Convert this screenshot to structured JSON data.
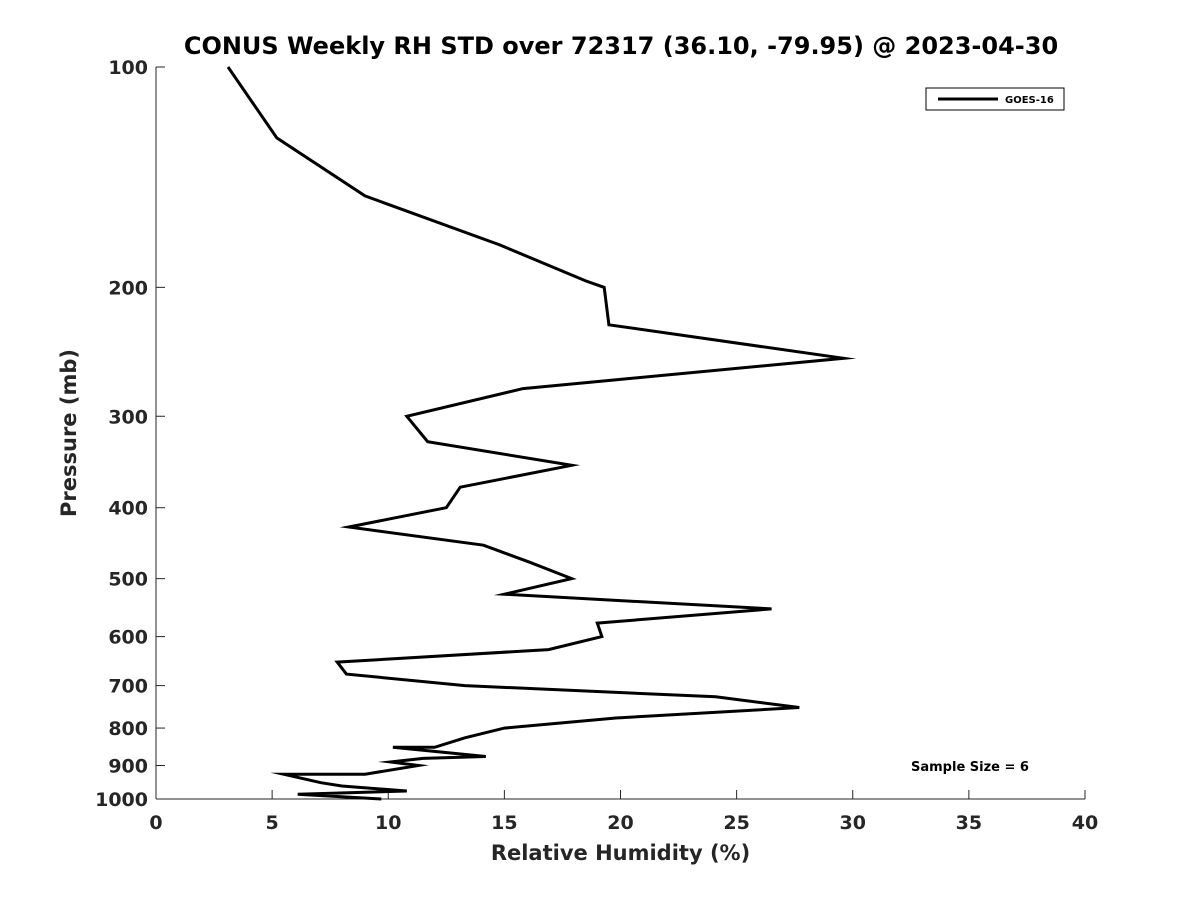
{
  "chart_data": {
    "type": "line",
    "title": "CONUS Weekly RH STD over 72317 (36.10, -79.95) @ 2023-04-30",
    "xlabel": "Relative Humidity (%)",
    "ylabel": "Pressure (mb)",
    "xlim": [
      0,
      40
    ],
    "ylim": [
      100,
      1000
    ],
    "y_scale": "log",
    "y_reversed": true,
    "x_ticks": [
      0,
      5,
      10,
      15,
      20,
      25,
      30,
      35,
      40
    ],
    "y_ticks": [
      100,
      200,
      300,
      400,
      500,
      600,
      700,
      800,
      900,
      1000
    ],
    "grid": false,
    "legend_position": "top-right",
    "series": [
      {
        "name": "GOES-16",
        "color": "#000000",
        "points": [
          [
            3.1,
            100
          ],
          [
            5.2,
            125
          ],
          [
            9.0,
            150
          ],
          [
            14.8,
            175
          ],
          [
            18.5,
            196
          ],
          [
            19.3,
            200
          ],
          [
            19.5,
            225
          ],
          [
            29.6,
            250
          ],
          [
            15.8,
            275
          ],
          [
            10.8,
            300
          ],
          [
            11.7,
            325
          ],
          [
            17.9,
            350
          ],
          [
            13.1,
            375
          ],
          [
            12.5,
            400
          ],
          [
            8.3,
            425
          ],
          [
            14.1,
            450
          ],
          [
            16.1,
            475
          ],
          [
            17.9,
            500
          ],
          [
            15.0,
            525
          ],
          [
            26.5,
            550
          ],
          [
            19.0,
            575
          ],
          [
            19.2,
            600
          ],
          [
            16.9,
            625
          ],
          [
            7.8,
            650
          ],
          [
            8.2,
            675
          ],
          [
            13.3,
            700
          ],
          [
            24.1,
            725
          ],
          [
            27.7,
            750
          ],
          [
            19.8,
            775
          ],
          [
            15.0,
            800
          ],
          [
            13.3,
            825
          ],
          [
            12.0,
            850
          ],
          [
            10.2,
            850
          ],
          [
            14.2,
            875
          ],
          [
            11.5,
            880
          ],
          [
            10.1,
            890
          ],
          [
            11.3,
            900
          ],
          [
            9.0,
            925
          ],
          [
            5.5,
            925
          ],
          [
            7.1,
            950
          ],
          [
            8.0,
            960
          ],
          [
            10.8,
            975
          ],
          [
            6.1,
            985
          ],
          [
            9.7,
            1000
          ]
        ]
      }
    ],
    "annotation": "Sample Size = 6"
  }
}
